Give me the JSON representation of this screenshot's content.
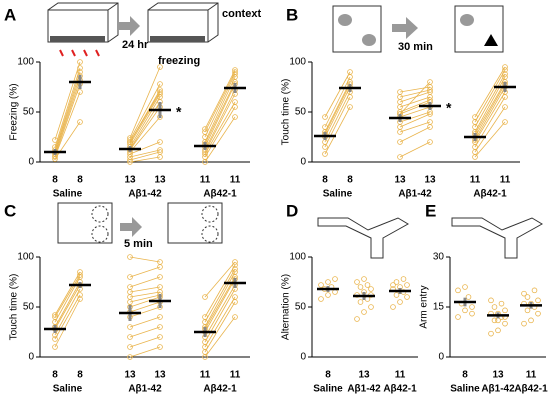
{
  "chart_data": [
    {
      "type": "paired",
      "letter": "A",
      "ylabel": "Freezing (%)",
      "ylim": [
        0,
        100
      ],
      "yticks": [
        0,
        50,
        100
      ],
      "color": "#e9b44c",
      "annotation": "*",
      "illustration_labels": [
        "24 hr",
        "context",
        "freezing"
      ],
      "groups": [
        {
          "name": "Saline",
          "n": [
            8,
            8
          ],
          "values": [
            [
              3,
              5,
              6,
              8,
              10,
              12,
              15,
              22
            ],
            [
              40,
              70,
              78,
              82,
              86,
              90,
              94,
              100
            ]
          ],
          "mean": [
            10,
            80
          ],
          "sem": [
            3,
            7
          ]
        },
        {
          "name": "Aβ1-42",
          "n": [
            13,
            13
          ],
          "values": [
            [
              0,
              2,
              5,
              8,
              10,
              12,
              13,
              15,
              18,
              20,
              20,
              22,
              24
            ],
            [
              5,
              10,
              12,
              20,
              45,
              55,
              60,
              65,
              68,
              70,
              72,
              78,
              95
            ]
          ],
          "mean": [
            13,
            52
          ],
          "sem": [
            3,
            8
          ]
        },
        {
          "name": "Aβ42-1",
          "n": [
            11,
            11
          ],
          "values": [
            [
              0,
              5,
              8,
              10,
              12,
              15,
              18,
              20,
              25,
              30,
              33
            ],
            [
              45,
              55,
              60,
              68,
              72,
              78,
              80,
              85,
              88,
              90,
              92
            ]
          ],
          "mean": [
            16,
            74
          ],
          "sem": [
            4,
            5
          ]
        }
      ]
    },
    {
      "type": "paired",
      "letter": "B",
      "ylabel": "Touch time (%)",
      "ylim": [
        0,
        100
      ],
      "yticks": [
        0,
        50,
        100
      ],
      "color": "#e9b44c",
      "annotation": "*",
      "illustration_labels": [
        "30 min"
      ],
      "groups": [
        {
          "name": "Saline",
          "n": [
            8,
            8
          ],
          "values": [
            [
              8,
              15,
              20,
              25,
              28,
              30,
              35,
              45
            ],
            [
              55,
              65,
              70,
              75,
              78,
              80,
              85,
              90
            ]
          ],
          "mean": [
            26,
            74
          ],
          "sem": [
            4,
            4
          ]
        },
        {
          "name": "Aβ1-42",
          "n": [
            13,
            13
          ],
          "values": [
            [
              5,
              20,
              30,
              35,
              40,
              45,
              48,
              50,
              55,
              60,
              65,
              70,
              48
            ],
            [
              20,
              35,
              40,
              48,
              50,
              55,
              60,
              62,
              65,
              70,
              72,
              75,
              80
            ]
          ],
          "mean": [
            44,
            56
          ],
          "sem": [
            4,
            4
          ]
        },
        {
          "name": "Aβ42-1",
          "n": [
            11,
            11
          ],
          "values": [
            [
              5,
              10,
              15,
              20,
              22,
              25,
              28,
              30,
              35,
              40,
              45
            ],
            [
              40,
              55,
              65,
              70,
              75,
              78,
              80,
              85,
              88,
              92,
              95
            ]
          ],
          "mean": [
            25,
            75
          ],
          "sem": [
            4,
            5
          ]
        }
      ]
    },
    {
      "type": "paired",
      "letter": "C",
      "ylabel": "Touch time (%)",
      "ylim": [
        0,
        100
      ],
      "yticks": [
        0,
        50,
        100
      ],
      "color": "#e9b44c",
      "illustration_labels": [
        "5 min"
      ],
      "groups": [
        {
          "name": "Saline",
          "n": [
            8,
            8
          ],
          "values": [
            [
              10,
              18,
              22,
              28,
              30,
              35,
              40,
              42
            ],
            [
              58,
              62,
              68,
              72,
              75,
              80,
              82,
              85
            ]
          ],
          "mean": [
            28,
            72
          ],
          "sem": [
            4,
            3
          ]
        },
        {
          "name": "Aβ1-42",
          "n": [
            13,
            13
          ],
          "values": [
            [
              0,
              10,
              20,
              30,
              40,
              45,
              50,
              55,
              60,
              65,
              70,
              80,
              100
            ],
            [
              10,
              20,
              30,
              40,
              50,
              55,
              60,
              62,
              65,
              70,
              80,
              90,
              95
            ]
          ],
          "mean": [
            44,
            56
          ],
          "sem": [
            8,
            7
          ]
        },
        {
          "name": "Aβ42-1",
          "n": [
            11,
            11
          ],
          "values": [
            [
              0,
              5,
              10,
              15,
              20,
              25,
              28,
              30,
              35,
              40,
              60
            ],
            [
              40,
              55,
              60,
              68,
              72,
              78,
              80,
              85,
              88,
              92,
              95
            ]
          ],
          "mean": [
            25,
            74
          ],
          "sem": [
            5,
            5
          ]
        }
      ]
    },
    {
      "type": "dots",
      "letter": "D",
      "ylabel": "Alternation (%)",
      "ylim": [
        0,
        100
      ],
      "yticks": [
        0,
        50,
        100
      ],
      "color": "#e9b44c",
      "groups": [
        {
          "name": "Saline",
          "n": [
            8
          ],
          "values": [
            [
              58,
              62,
              65,
              68,
              70,
              72,
              75,
              78
            ]
          ],
          "mean": [
            68
          ],
          "sem": [
            3
          ]
        },
        {
          "name": "Aβ1-42",
          "n": [
            13
          ],
          "values": [
            [
              38,
              45,
              50,
              55,
              58,
              62,
              65,
              68,
              70,
              72,
              75,
              78,
              62
            ]
          ],
          "mean": [
            61
          ],
          "sem": [
            4
          ]
        },
        {
          "name": "Aβ42-1",
          "n": [
            11
          ],
          "values": [
            [
              50,
              55,
              60,
              62,
              65,
              68,
              70,
              72,
              75,
              78,
              72
            ]
          ],
          "mean": [
            66
          ],
          "sem": [
            3
          ]
        }
      ]
    },
    {
      "type": "dots",
      "letter": "E",
      "ylabel": "Arm entry",
      "ylim": [
        0,
        30
      ],
      "yticks": [
        0,
        15,
        30
      ],
      "color": "#e9b44c",
      "groups": [
        {
          "name": "Saline",
          "n": [
            8
          ],
          "values": [
            [
              12,
              14,
              15,
              16,
              18,
              20,
              21,
              13
            ]
          ],
          "mean": [
            16.5
          ],
          "sem": [
            1.3
          ]
        },
        {
          "name": "Aβ1-42",
          "n": [
            13
          ],
          "values": [
            [
              7,
              8,
              10,
              11,
              12,
              13,
              13,
              14,
              15,
              16,
              17,
              11,
              12
            ]
          ],
          "mean": [
            12.5
          ],
          "sem": [
            0.9
          ]
        },
        {
          "name": "Aβ42-1",
          "n": [
            11
          ],
          "values": [
            [
              10,
              11,
              13,
              14,
              15,
              16,
              16,
              17,
              18,
              20,
              19
            ]
          ],
          "mean": [
            15.5
          ],
          "sem": [
            1
          ]
        }
      ]
    }
  ]
}
